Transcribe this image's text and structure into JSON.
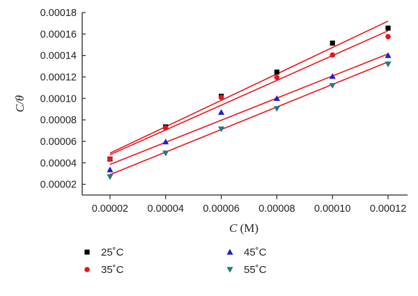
{
  "chart_data": {
    "type": "scatter",
    "xlabel_var": "C",
    "xlabel_unit": " (M)",
    "ylabel_text": "C/θ",
    "xlim": [
      1e-05,
      0.000127
    ],
    "ylim": [
      1e-05,
      0.00018
    ],
    "x_ticks": [
      "0.00002",
      "0.00004",
      "0.00006",
      "0.00008",
      "0.00010",
      "0.00012"
    ],
    "y_ticks": [
      "0.00002",
      "0.00004",
      "0.00006",
      "0.00008",
      "0.00010",
      "0.00012",
      "0.00014",
      "0.00016",
      "0.00018"
    ],
    "x": [
      2e-05,
      4e-05,
      6e-05,
      8e-05,
      0.0001,
      0.00012
    ],
    "series": [
      {
        "name": "25˚C",
        "marker": "square",
        "color": "#000000",
        "values": [
          4.35e-05,
          7.35e-05,
          0.000102,
          0.0001245,
          0.0001515,
          0.0001655
        ],
        "fit": [
          4.9e-05,
          0.000172
        ]
      },
      {
        "name": "35˚C",
        "marker": "circle",
        "color": "#e8141b",
        "values": [
          4.35e-05,
          7.25e-05,
          0.000101,
          0.0001195,
          0.0001405,
          0.0001575
        ],
        "fit": [
          4.75e-05,
          0.000163
        ]
      },
      {
        "name": "45˚C",
        "marker": "triangle-up",
        "color": "#1f1fd0",
        "values": [
          3.35e-05,
          5.95e-05,
          8.7e-05,
          0.0001,
          0.0001205,
          0.00014
        ],
        "fit": [
          3.85e-05,
          0.0001415
        ]
      },
      {
        "name": "55˚C",
        "marker": "triangle-down",
        "color": "#1f7d78",
        "values": [
          2.7e-05,
          4.9e-05,
          7.15e-05,
          9.05e-05,
          0.000112,
          0.000132
        ],
        "fit": [
          2.9e-05,
          0.000134
        ]
      }
    ],
    "fit_line_color": "#e8141b",
    "legend_placement": "bottom"
  }
}
